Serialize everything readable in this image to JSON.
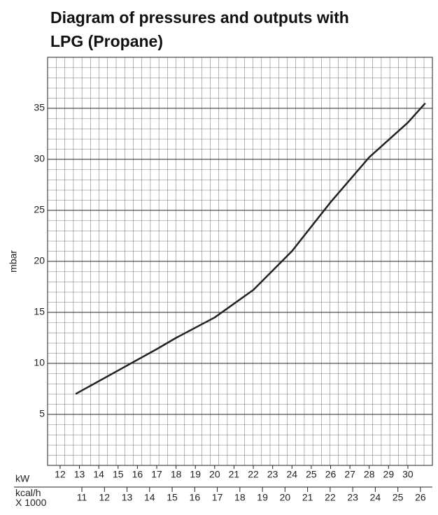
{
  "chart_data": {
    "type": "line",
    "title": "Diagram of pressures and outputs with LPG (Propane)",
    "y_label": "mbar",
    "x_label": "kW",
    "x2_label": "kcal/h X 1000",
    "xlim": [
      11.35,
      31.27
    ],
    "xticks": [
      12,
      13,
      14,
      15,
      16,
      17,
      18,
      19,
      20,
      21,
      22,
      23,
      24,
      25,
      26,
      27,
      28,
      29,
      30
    ],
    "x2lim": [
      9.48,
      26.53
    ],
    "x2ticks": [
      11,
      12,
      13,
      14,
      15,
      16,
      17,
      18,
      19,
      20,
      21,
      22,
      23,
      24,
      25,
      26
    ],
    "ylim": [
      0,
      40
    ],
    "yticks": [
      5,
      10,
      15,
      20,
      25,
      30,
      35
    ],
    "grid": true,
    "x": [
      12.8,
      15,
      17,
      18,
      20,
      22,
      24,
      26,
      28,
      30,
      30.9
    ],
    "series": [
      {
        "name": "LPG (Propane)",
        "color": "#222222",
        "values": [
          7.0,
          9.3,
          11.4,
          12.5,
          14.5,
          17.2,
          21,
          25.8,
          30.2,
          33.6,
          35.5
        ]
      }
    ]
  }
}
